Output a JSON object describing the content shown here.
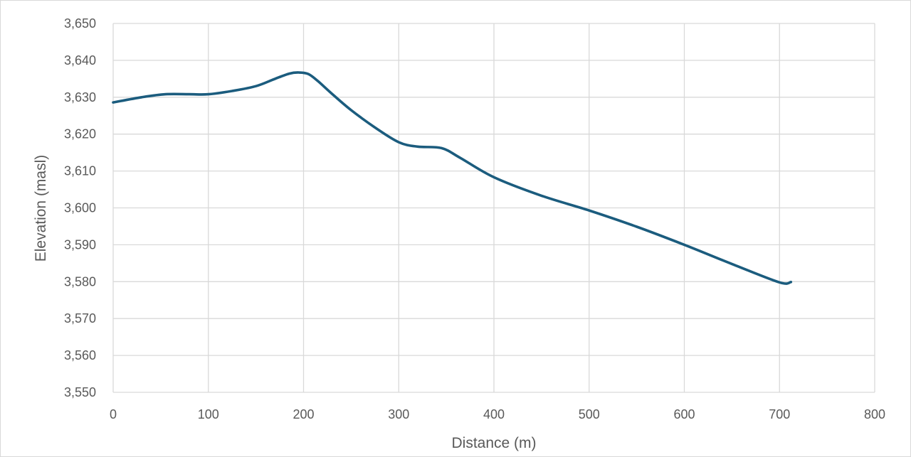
{
  "chart_data": {
    "type": "line",
    "title": "",
    "xlabel": "Distance (m)",
    "ylabel": "Elevation (masl)",
    "xlim": [
      0,
      800
    ],
    "ylim": [
      3550,
      3650
    ],
    "x_ticks": [
      0,
      100,
      200,
      300,
      400,
      500,
      600,
      700,
      800
    ],
    "y_ticks": [
      3550,
      3560,
      3570,
      3580,
      3590,
      3600,
      3610,
      3620,
      3630,
      3640,
      3650
    ],
    "x_tick_labels": [
      "0",
      "100",
      "200",
      "300",
      "400",
      "500",
      "600",
      "700",
      "800"
    ],
    "y_tick_labels": [
      "3,550",
      "3,560",
      "3,570",
      "3,580",
      "3,590",
      "3,600",
      "3,610",
      "3,620",
      "3,630",
      "3,640",
      "3,650"
    ],
    "grid": true,
    "legend": "none",
    "line_color": "#1b5c7e",
    "series": [
      {
        "x": [
          0,
          30,
          55,
          80,
          100,
          125,
          150,
          170,
          185,
          195,
          205,
          215,
          230,
          250,
          275,
          300,
          320,
          345,
          365,
          400,
          450,
          500,
          550,
          600,
          650,
          700,
          712
        ],
        "y": [
          3628.6,
          3630.0,
          3630.8,
          3630.8,
          3630.8,
          3631.7,
          3633.0,
          3635.0,
          3636.4,
          3636.7,
          3636.3,
          3634.4,
          3630.9,
          3626.5,
          3621.8,
          3617.8,
          3616.6,
          3616.2,
          3613.5,
          3608.3,
          3603.3,
          3599.3,
          3594.9,
          3590.0,
          3584.8,
          3579.8,
          3579.9
        ]
      }
    ]
  }
}
